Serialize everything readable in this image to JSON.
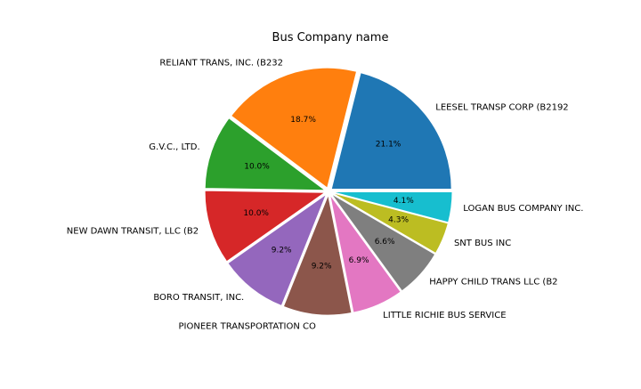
{
  "chart_data": {
    "type": "pie",
    "title": " Bus Company name",
    "slices": [
      {
        "label": "LEESEL TRANSP CORP (B2192",
        "value": 21.1,
        "pct_label": "21.1%",
        "color": "#1f77b4"
      },
      {
        "label": "RELIANT TRANS, INC. (B232",
        "value": 18.7,
        "pct_label": "18.7%",
        "color": "#ff7f0e"
      },
      {
        "label": "G.V.C., LTD.",
        "value": 10.0,
        "pct_label": "10.0%",
        "color": "#2ca02c"
      },
      {
        "label": "NEW DAWN TRANSIT, LLC (B2",
        "value": 10.0,
        "pct_label": "10.0%",
        "color": "#d62728"
      },
      {
        "label": "BORO TRANSIT, INC.",
        "value": 9.2,
        "pct_label": "9.2%",
        "color": "#9467bd"
      },
      {
        "label": "PIONEER TRANSPORTATION CO",
        "value": 9.2,
        "pct_label": "9.2%",
        "color": "#8c564b"
      },
      {
        "label": "LITTLE RICHIE BUS SERVICE",
        "value": 6.9,
        "pct_label": "6.9%",
        "color": "#e377c2"
      },
      {
        "label": "HAPPY CHILD TRANS LLC (B2",
        "value": 6.6,
        "pct_label": "6.6%",
        "color": "#7f7f7f"
      },
      {
        "label": "SNT BUS INC",
        "value": 4.3,
        "pct_label": "4.3%",
        "color": "#bcbd22"
      },
      {
        "label": "LOGAN BUS COMPANY INC.",
        "value": 4.1,
        "pct_label": "4.1%",
        "color": "#17becf"
      }
    ]
  }
}
